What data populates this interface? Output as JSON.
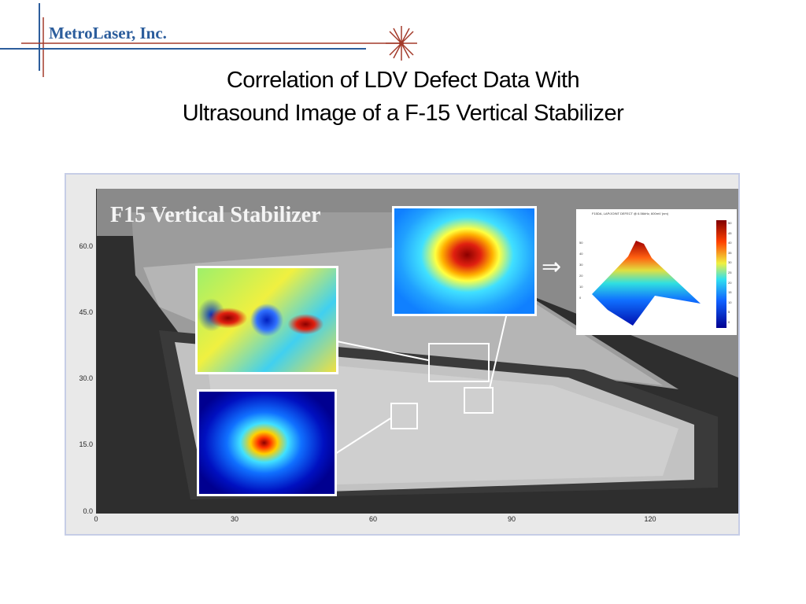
{
  "logo": {
    "company": "MetroLaser, Inc."
  },
  "title": {
    "line1": "Correlation of LDV Defect Data With",
    "line2": "Ultrasound Image of a F-15 Vertical Stabilizer"
  },
  "figure": {
    "image_label": "F15 Vertical Stabilizer",
    "y_ticks": [
      "60.0",
      "45.0",
      "30.0",
      "15.0",
      "0.0"
    ],
    "x_ticks": [
      "0",
      "30",
      "60",
      "90",
      "120"
    ],
    "arrow": "⇒",
    "surface_plot": {
      "title": "F15DA, LAP/JOINT DEFECT @ 6.56kHz, 600mV (nm)",
      "z_ticks": [
        "50",
        "40",
        "30",
        "20",
        "10",
        "0"
      ],
      "colorbar_ticks": [
        "50",
        "45",
        "40",
        "35",
        "30",
        "25",
        "20",
        "15",
        "10",
        "5",
        "0"
      ]
    }
  },
  "colors": {
    "logo_blue": "#2c5d9c",
    "logo_red": "#a33a2a",
    "panel_border": "#c6cde6"
  }
}
